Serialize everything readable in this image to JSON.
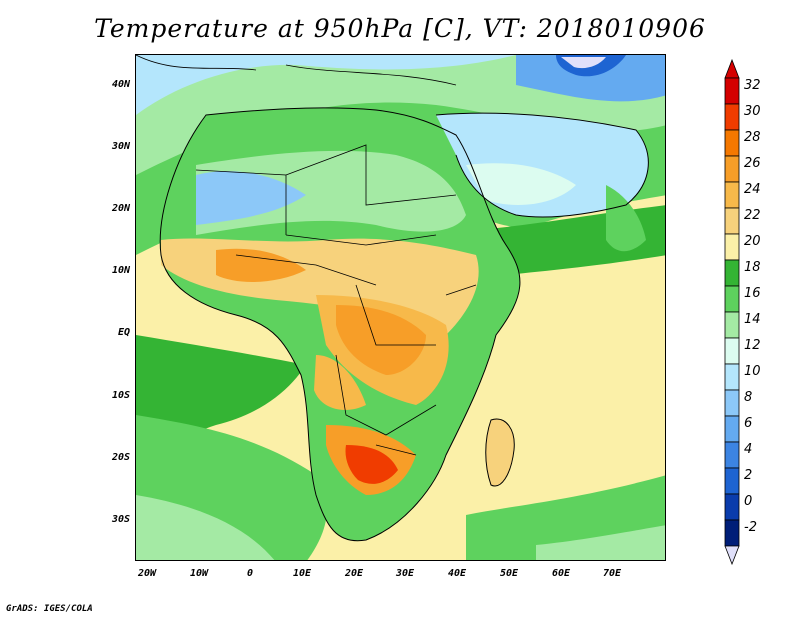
{
  "title": "Temperature at 950hPa [C], VT: 2018010906",
  "footer": "GrADS: IGES/COLA",
  "map": {
    "lat_ticks": [
      "40N",
      "30N",
      "20N",
      "10N",
      "EQ",
      "10S",
      "20S",
      "30S"
    ],
    "lon_ticks": [
      "20W",
      "10W",
      "0",
      "10E",
      "20E",
      "30E",
      "40E",
      "50E",
      "60E",
      "70E"
    ],
    "variable": "Temperature",
    "level": "950hPa",
    "units": "C"
  },
  "colorbar": {
    "labels": [
      "32",
      "30",
      "28",
      "26",
      "24",
      "22",
      "20",
      "18",
      "16",
      "14",
      "12",
      "10",
      "8",
      "6",
      "4",
      "2",
      "0",
      "-2"
    ],
    "colors": [
      "#d40000",
      "#f03c00",
      "#f57800",
      "#f79e28",
      "#f7b94a",
      "#f7d27c",
      "#fbf0a8",
      "#34b434",
      "#5ed25e",
      "#a4eaa4",
      "#dcfcf0",
      "#b4e6fc",
      "#8cc8f8",
      "#64aaf0",
      "#3c84e2",
      "#1e64d2",
      "#0a3cac",
      "#001e78",
      "#e0e0fa"
    ]
  }
}
